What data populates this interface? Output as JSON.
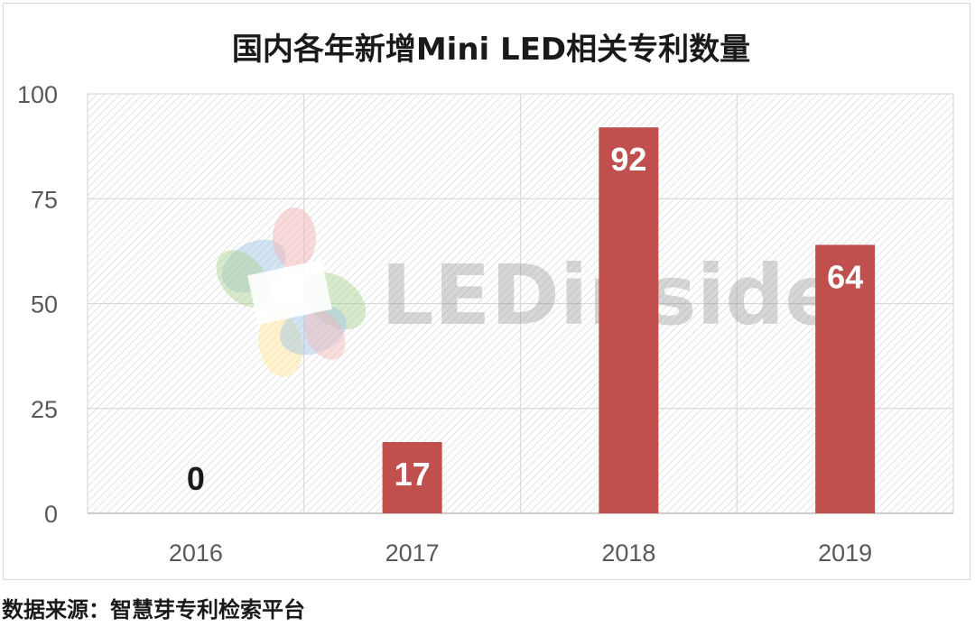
{
  "chart_data": {
    "type": "bar",
    "title": "国内各年新增Mini LED相关专利数量",
    "categories": [
      "2016",
      "2017",
      "2018",
      "2019"
    ],
    "values": [
      0,
      17,
      92,
      64
    ],
    "data_labels": [
      "0",
      "17",
      "92",
      "64"
    ],
    "ylim": [
      0,
      100
    ],
    "yticks": [
      0,
      25,
      50,
      75,
      100
    ],
    "xlabel": "",
    "ylabel": "",
    "grid": true,
    "legend": "none",
    "bar_color": "#c0504d",
    "label_color_inside": "#ffffff",
    "label_color_outside": "#1a1a1a"
  },
  "watermark": {
    "text": "LEDinside"
  },
  "source": "数据来源：智慧芽专利检索平台",
  "colors": {
    "grid": "#d9d9d9",
    "hatch": "#d4d4d4",
    "axis": "#bfbfbf"
  }
}
